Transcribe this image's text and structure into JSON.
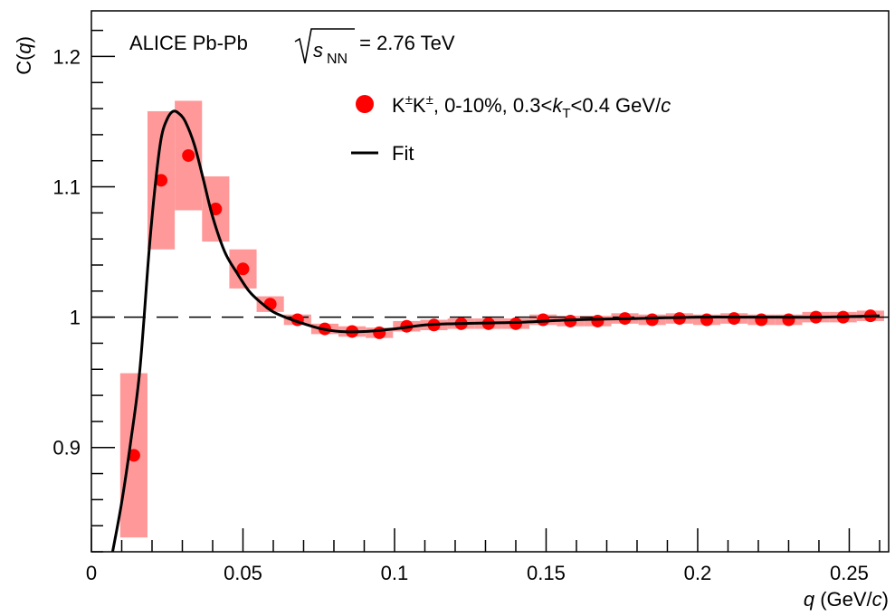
{
  "chart_data": {
    "type": "scatter",
    "title_prefix": "ALICE Pb-Pb",
    "title_sqrt_label": "s",
    "title_sqrt_sub": "NN",
    "title_suffix": " = 2.76 TeV",
    "xlabel": {
      "var": "q",
      "open": " (GeV/",
      "unit_var": "c",
      "close": ")"
    },
    "ylabel": {
      "prefix": "C(",
      "var": "q",
      "suffix": ")"
    },
    "xlim": [
      0,
      0.263
    ],
    "ylim": [
      0.82,
      1.235
    ],
    "x_ticks": [
      {
        "value": 0,
        "label": "0"
      },
      {
        "value": 0.05,
        "label": "0.05"
      },
      {
        "value": 0.1,
        "label": "0.1"
      },
      {
        "value": 0.15,
        "label": "0.15"
      },
      {
        "value": 0.2,
        "label": "0.2"
      },
      {
        "value": 0.25,
        "label": "0.25"
      }
    ],
    "y_ticks": [
      {
        "value": 0.9,
        "label": "0.9"
      },
      {
        "value": 1.0,
        "label": "1"
      },
      {
        "value": 1.1,
        "label": "1.1"
      },
      {
        "value": 1.2,
        "label": "1.2"
      }
    ],
    "reference_line": 1.0,
    "legend": {
      "placement": "top-right",
      "data_label": {
        "p1": "K",
        "sup1": "±",
        "p2": "K",
        "sup2": "±",
        "p3": ", 0-10%, 0.3<",
        "kvar": "k",
        "ksub": "T",
        "p4": "<0.4 GeV/",
        "cvar": "c"
      },
      "fit_label": "Fit"
    },
    "colors": {
      "marker": "#ff0000",
      "syst_box": "#ff9999",
      "fit": "#000000"
    },
    "series": [
      {
        "name": "K±K±, 0-10%, 0.3<kT<0.4 GeV/c",
        "points": [
          {
            "x": 0.014,
            "y": 0.894,
            "syst": 0.063
          },
          {
            "x": 0.023,
            "y": 1.105,
            "syst": 0.053
          },
          {
            "x": 0.032,
            "y": 1.124,
            "syst": 0.042
          },
          {
            "x": 0.041,
            "y": 1.083,
            "syst": 0.025
          },
          {
            "x": 0.05,
            "y": 1.037,
            "syst": 0.015
          },
          {
            "x": 0.059,
            "y": 1.01,
            "syst": 0.006
          },
          {
            "x": 0.068,
            "y": 0.998,
            "syst": 0.004
          },
          {
            "x": 0.077,
            "y": 0.991,
            "syst": 0.004
          },
          {
            "x": 0.086,
            "y": 0.989,
            "syst": 0.004
          },
          {
            "x": 0.095,
            "y": 0.988,
            "syst": 0.004
          },
          {
            "x": 0.104,
            "y": 0.993,
            "syst": 0.004
          },
          {
            "x": 0.113,
            "y": 0.994,
            "syst": 0.004
          },
          {
            "x": 0.122,
            "y": 0.995,
            "syst": 0.004
          },
          {
            "x": 0.131,
            "y": 0.995,
            "syst": 0.004
          },
          {
            "x": 0.14,
            "y": 0.995,
            "syst": 0.004
          },
          {
            "x": 0.149,
            "y": 0.998,
            "syst": 0.004
          },
          {
            "x": 0.158,
            "y": 0.997,
            "syst": 0.004
          },
          {
            "x": 0.167,
            "y": 0.997,
            "syst": 0.004
          },
          {
            "x": 0.176,
            "y": 0.999,
            "syst": 0.004
          },
          {
            "x": 0.185,
            "y": 0.998,
            "syst": 0.004
          },
          {
            "x": 0.194,
            "y": 0.999,
            "syst": 0.004
          },
          {
            "x": 0.203,
            "y": 0.998,
            "syst": 0.004
          },
          {
            "x": 0.212,
            "y": 0.999,
            "syst": 0.004
          },
          {
            "x": 0.221,
            "y": 0.998,
            "syst": 0.004
          },
          {
            "x": 0.23,
            "y": 0.998,
            "syst": 0.004
          },
          {
            "x": 0.239,
            "y": 1.0,
            "syst": 0.004
          },
          {
            "x": 0.248,
            "y": 1.0,
            "syst": 0.004
          },
          {
            "x": 0.257,
            "y": 1.001,
            "syst": 0.004
          }
        ]
      },
      {
        "name": "Fit",
        "line": [
          [
            0.007,
            0.82
          ],
          [
            0.01,
            0.858
          ],
          [
            0.013,
            0.905
          ],
          [
            0.016,
            0.96
          ],
          [
            0.019,
            1.05
          ],
          [
            0.021,
            1.1
          ],
          [
            0.023,
            1.137
          ],
          [
            0.025,
            1.152
          ],
          [
            0.027,
            1.158
          ],
          [
            0.029,
            1.156
          ],
          [
            0.031,
            1.15
          ],
          [
            0.034,
            1.132
          ],
          [
            0.037,
            1.105
          ],
          [
            0.04,
            1.077
          ],
          [
            0.044,
            1.05
          ],
          [
            0.048,
            1.034
          ],
          [
            0.052,
            1.02
          ],
          [
            0.056,
            1.011
          ],
          [
            0.06,
            1.004
          ],
          [
            0.065,
            0.999
          ],
          [
            0.07,
            0.995
          ],
          [
            0.076,
            0.991
          ],
          [
            0.082,
            0.989
          ],
          [
            0.09,
            0.989
          ],
          [
            0.1,
            0.991
          ],
          [
            0.11,
            0.994
          ],
          [
            0.12,
            0.995
          ],
          [
            0.14,
            0.996
          ],
          [
            0.16,
            0.998
          ],
          [
            0.18,
            0.999
          ],
          [
            0.2,
            1.0
          ],
          [
            0.22,
            1.0
          ],
          [
            0.24,
            1.0
          ],
          [
            0.26,
            1.001
          ]
        ]
      }
    ]
  }
}
